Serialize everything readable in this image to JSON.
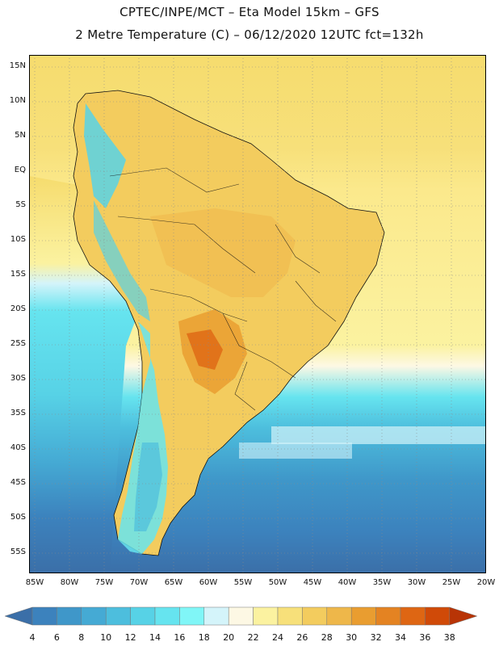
{
  "header": {
    "line1": "CPTEC/INPE/MCT –  Eta Model 15km – GFS",
    "line2": "2 Metre Temperature (C) – 06/12/2020 12UTC fct=132h"
  },
  "map": {
    "lat_labels": [
      "15N",
      "10N",
      "5N",
      "EQ",
      "5S",
      "10S",
      "15S",
      "20S",
      "25S",
      "30S",
      "35S",
      "40S",
      "45S",
      "50S",
      "55S"
    ],
    "lon_labels": [
      "85W",
      "80W",
      "75W",
      "70W",
      "65W",
      "60W",
      "55W",
      "50W",
      "45W",
      "40W",
      "35W",
      "30W",
      "25W",
      "20W"
    ],
    "land_icon": "south-america-landmass",
    "gridlines": "dotted"
  },
  "colorbar": {
    "values": [
      "4",
      "6",
      "8",
      "10",
      "12",
      "14",
      "16",
      "18",
      "20",
      "22",
      "24",
      "26",
      "28",
      "30",
      "32",
      "34",
      "36",
      "38"
    ],
    "colors": [
      "#3b6fa8",
      "#3c82bd",
      "#3f97c9",
      "#45aad4",
      "#4dbedd",
      "#57d2e6",
      "#66e4ef",
      "#80f6f7",
      "#d4f4fa",
      "#fdf8e4",
      "#fbf2a0",
      "#f7e07a",
      "#f3cc5e",
      "#eeb74a",
      "#e99d30",
      "#e48322",
      "#de6613",
      "#d04a08",
      "#b83406"
    ]
  }
}
